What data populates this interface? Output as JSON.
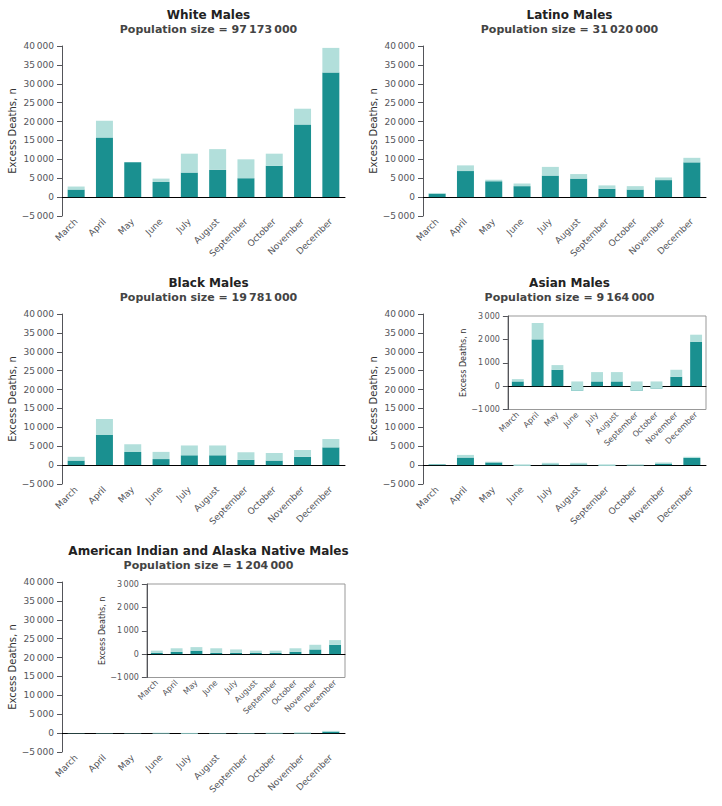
{
  "chart_data": [
    {
      "type": "bar",
      "title": "White Males",
      "subtitle": "Population size = 97 173 000",
      "categories": [
        "March",
        "April",
        "May",
        "June",
        "July",
        "August",
        "September",
        "October",
        "November",
        "December"
      ],
      "series": [
        {
          "color": "#1a9090",
          "values": [
            2000,
            15800,
            9200,
            4000,
            6500,
            7200,
            5000,
            8300,
            19200,
            33000
          ]
        },
        {
          "color": "#b2dfdb",
          "values": [
            800,
            4400,
            0,
            900,
            5000,
            5500,
            5000,
            3200,
            4200,
            6500
          ]
        }
      ],
      "stacked": true,
      "grid": false,
      "ylabel": "Excess Deaths, n",
      "ylim": [
        -5000,
        40000
      ],
      "yticks": [
        {
          "value": -5000,
          "label": "−5 000"
        },
        0,
        {
          "value": 5000,
          "label": "5 000"
        },
        {
          "value": 10000,
          "label": "10 000"
        },
        {
          "value": 15000,
          "label": "15 000"
        },
        {
          "value": 20000,
          "label": "20 000"
        },
        {
          "value": 25000,
          "label": "25 000"
        },
        {
          "value": 30000,
          "label": "30 000"
        },
        {
          "value": 35000,
          "label": "35 000"
        },
        {
          "value": 40000,
          "label": "40 000"
        }
      ]
    },
    {
      "type": "bar",
      "title": "Latino Males",
      "subtitle": "Population size = 31 020 000",
      "categories": [
        "March",
        "April",
        "May",
        "June",
        "July",
        "August",
        "September",
        "October",
        "November",
        "December"
      ],
      "series": [
        {
          "color": "#1a9090",
          "values": [
            900,
            6900,
            4200,
            2900,
            5700,
            4900,
            2200,
            2000,
            4500,
            9200
          ]
        },
        {
          "color": "#b2dfdb",
          "values": [
            200,
            1500,
            400,
            700,
            2300,
            1200,
            900,
            900,
            700,
            1200
          ]
        }
      ],
      "stacked": true,
      "grid": false,
      "ylabel": "Excess Deaths, n",
      "ylim": [
        -5000,
        40000
      ],
      "yticks": [
        {
          "value": -5000,
          "label": "−5 000"
        },
        0,
        {
          "value": 5000,
          "label": "5 000"
        },
        {
          "value": 10000,
          "label": "10 000"
        },
        {
          "value": 15000,
          "label": "15 000"
        },
        {
          "value": 20000,
          "label": "20 000"
        },
        {
          "value": 25000,
          "label": "25 000"
        },
        {
          "value": 30000,
          "label": "30 000"
        },
        {
          "value": 35000,
          "label": "35 000"
        },
        {
          "value": 40000,
          "label": "40 000"
        }
      ]
    },
    {
      "type": "bar",
      "title": "Black Males",
      "subtitle": "Population size = 19 781 000",
      "categories": [
        "March",
        "April",
        "May",
        "June",
        "July",
        "August",
        "September",
        "October",
        "November",
        "December"
      ],
      "series": [
        {
          "color": "#1a9090",
          "values": [
            1200,
            8000,
            3500,
            1600,
            2600,
            2600,
            1400,
            1200,
            2200,
            4700
          ]
        },
        {
          "color": "#b2dfdb",
          "values": [
            1000,
            4200,
            2000,
            1900,
            2600,
            2600,
            2000,
            2000,
            1800,
            2200
          ]
        }
      ],
      "stacked": true,
      "grid": false,
      "ylabel": "Excess Deaths, n",
      "ylim": [
        -5000,
        40000
      ],
      "yticks": [
        {
          "value": -5000,
          "label": "−5 000"
        },
        0,
        {
          "value": 5000,
          "label": "5 000"
        },
        {
          "value": 10000,
          "label": "10 000"
        },
        {
          "value": 15000,
          "label": "15 000"
        },
        {
          "value": 20000,
          "label": "20 000"
        },
        {
          "value": 25000,
          "label": "25 000"
        },
        {
          "value": 30000,
          "label": "30 000"
        },
        {
          "value": 35000,
          "label": "35 000"
        },
        {
          "value": 40000,
          "label": "40 000"
        }
      ]
    },
    {
      "type": "bar",
      "title": "Asian Males",
      "subtitle": "Population size = 9 164 000",
      "categories": [
        "March",
        "April",
        "May",
        "June",
        "July",
        "August",
        "September",
        "October",
        "November",
        "December"
      ],
      "series": [
        {
          "color": "#1a9090",
          "values": [
            200,
            2000,
            700,
            -200,
            200,
            200,
            -200,
            -100,
            400,
            1900
          ]
        },
        {
          "color": "#b2dfdb",
          "values": [
            100,
            700,
            200,
            400,
            400,
            400,
            400,
            300,
            300,
            300
          ]
        }
      ],
      "stacked": true,
      "grid": false,
      "ylabel": "Excess Deaths, n",
      "ylim": [
        -5000,
        40000
      ],
      "yticks": [
        {
          "value": -5000,
          "label": "−5 000"
        },
        0,
        {
          "value": 5000,
          "label": "5 000"
        },
        {
          "value": 10000,
          "label": "10 000"
        },
        {
          "value": 15000,
          "label": "15 000"
        },
        {
          "value": 20000,
          "label": "20 000"
        },
        {
          "value": 25000,
          "label": "25 000"
        },
        {
          "value": 30000,
          "label": "30 000"
        },
        {
          "value": 35000,
          "label": "35 000"
        },
        {
          "value": 40000,
          "label": "40 000"
        }
      ]
    },
    {
      "type": "bar",
      "title": "American Indian and Alaska Native Males",
      "subtitle": "Population size = 1 204 000",
      "categories": [
        "March",
        "April",
        "May",
        "June",
        "July",
        "August",
        "September",
        "October",
        "November",
        "December"
      ],
      "series": [
        {
          "color": "#1a9090",
          "values": [
            -50,
            -50,
            -50,
            -100,
            -150,
            -100,
            -100,
            -100,
            -100,
            400
          ]
        },
        {
          "color": "#b2dfdb",
          "values": [
            50,
            100,
            100,
            200,
            200,
            100,
            100,
            200,
            300,
            200
          ]
        }
      ],
      "stacked": true,
      "grid": false,
      "ylabel": "Excess Deaths, n",
      "ylim": [
        -5000,
        40000
      ],
      "yticks": [
        {
          "value": -5000,
          "label": "−5 000"
        },
        0,
        {
          "value": 5000,
          "label": "5 000"
        },
        {
          "value": 10000,
          "label": "10 000"
        },
        {
          "value": 15000,
          "label": "15 000"
        },
        {
          "value": 20000,
          "label": "20 000"
        },
        {
          "value": 25000,
          "label": "25 000"
        },
        {
          "value": 30000,
          "label": "30 000"
        },
        {
          "value": 35000,
          "label": "35 000"
        },
        {
          "value": 40000,
          "label": "40 000"
        }
      ]
    },
    {
      "type": "bar",
      "categories": [
        "March",
        "April",
        "May",
        "June",
        "July",
        "August",
        "September",
        "October",
        "November",
        "December"
      ],
      "series": [
        {
          "color": "#1a9090",
          "values": [
            200,
            2000,
            700,
            -200,
            200,
            200,
            -200,
            -100,
            400,
            1900
          ]
        },
        {
          "color": "#b2dfdb",
          "values": [
            100,
            700,
            200,
            400,
            400,
            400,
            400,
            300,
            300,
            300
          ]
        }
      ],
      "stacked": true,
      "grid": false,
      "ylabel": "Excess Deaths, n",
      "ylim": [
        -1000,
        3000
      ],
      "yticks": [
        {
          "value": -1000,
          "label": "−1 000"
        },
        0,
        {
          "value": 1000,
          "label": "1 000"
        },
        {
          "value": 2000,
          "label": "2 000"
        },
        {
          "value": 3000,
          "label": "3 000"
        }
      ]
    },
    {
      "type": "bar",
      "categories": [
        "March",
        "April",
        "May",
        "June",
        "July",
        "August",
        "September",
        "October",
        "November",
        "December"
      ],
      "series": [
        {
          "color": "#1a9090",
          "values": [
            50,
            100,
            150,
            50,
            50,
            50,
            50,
            100,
            200,
            400
          ]
        },
        {
          "color": "#b2dfdb",
          "values": [
            100,
            150,
            150,
            200,
            150,
            100,
            100,
            150,
            200,
            200
          ]
        }
      ],
      "stacked": true,
      "grid": false,
      "ylabel": "Excess Deaths, n",
      "ylim": [
        -1000,
        3000
      ],
      "yticks": [
        {
          "value": -1000,
          "label": "−1 000"
        },
        0,
        {
          "value": 1000,
          "label": "1 000"
        },
        {
          "value": 2000,
          "label": "2 000"
        },
        {
          "value": 3000,
          "label": "3 000"
        }
      ]
    }
  ]
}
